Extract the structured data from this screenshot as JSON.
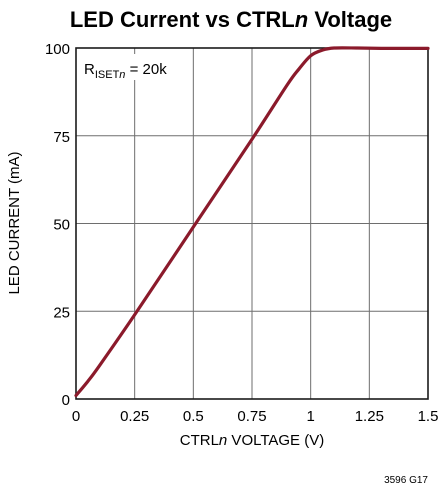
{
  "chart_data": {
    "type": "line",
    "title": "LED Current vs CTRLn Voltage",
    "title_parts": {
      "before": "LED Current vs CTRL",
      "italic": "n",
      "after": " Voltage"
    },
    "xlabel": "CTRLn VOLTAGE (V)",
    "xlabel_parts": {
      "before": "CTRL",
      "italic": "n",
      "after": " VOLTAGE (V)"
    },
    "ylabel": "LED CURRENT (mA)",
    "xlim": [
      0,
      1.5
    ],
    "ylim": [
      0,
      100
    ],
    "xticks": [
      0,
      0.25,
      0.5,
      0.75,
      1,
      1.25,
      1.5
    ],
    "xtick_labels": [
      "0",
      "0.25",
      "0.5",
      "0.75",
      "1",
      "1.25",
      "1.5"
    ],
    "yticks": [
      0,
      25,
      50,
      75,
      100
    ],
    "ytick_labels": [
      "0",
      "25",
      "50",
      "75",
      "100"
    ],
    "grid": true,
    "series": [
      {
        "color": "#8b1a2b",
        "x": [
          0,
          0.05,
          0.1,
          0.25,
          0.5,
          0.75,
          0.9,
          0.95,
          1.0,
          1.05,
          1.1,
          1.2,
          1.3,
          1.4,
          1.5
        ],
        "y": [
          1,
          5,
          9.5,
          24,
          49,
          74,
          89.5,
          94,
          97.8,
          99.4,
          100,
          100,
          99.9,
          99.9,
          99.9
        ]
      }
    ],
    "annotation": {
      "main": "R",
      "sub_before": "ISET",
      "sub_italic": "n",
      "after": " = 20k"
    },
    "figure_id": "3596 G17"
  }
}
